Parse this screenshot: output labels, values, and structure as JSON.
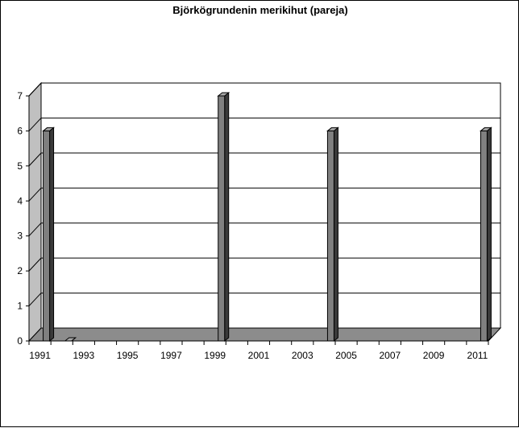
{
  "chart_data": {
    "type": "bar",
    "title": "Björkögrundenin merikihut (pareja)",
    "xlabel": "",
    "ylabel": "",
    "categories": [
      "1991",
      "1992",
      "1993",
      "1994",
      "1995",
      "1996",
      "1997",
      "1998",
      "1999",
      "2000",
      "2001",
      "2002",
      "2003",
      "2004",
      "2005",
      "2006",
      "2007",
      "2008",
      "2009",
      "2010",
      "2011"
    ],
    "x_tick_labels": [
      "1991",
      "1993",
      "1995",
      "1997",
      "1999",
      "2001",
      "2003",
      "2005",
      "2007",
      "2009",
      "2011"
    ],
    "y_tick_labels": [
      "0",
      "1",
      "2",
      "3",
      "4",
      "5",
      "6",
      "7"
    ],
    "series": [
      {
        "values": [
          6,
          0,
          null,
          null,
          null,
          null,
          null,
          null,
          7,
          null,
          null,
          null,
          null,
          6,
          null,
          null,
          null,
          null,
          null,
          null,
          6
        ]
      }
    ],
    "ylim": [
      0,
      7
    ],
    "grid": true,
    "style": "3d",
    "colors": {
      "bar": "#808080",
      "bar_side": "#3a3a3a",
      "bar_top": "#a8a8a8",
      "wall": "#ffffff",
      "side_wall": "#c0c0c0",
      "floor": "#8c8c8c"
    }
  }
}
